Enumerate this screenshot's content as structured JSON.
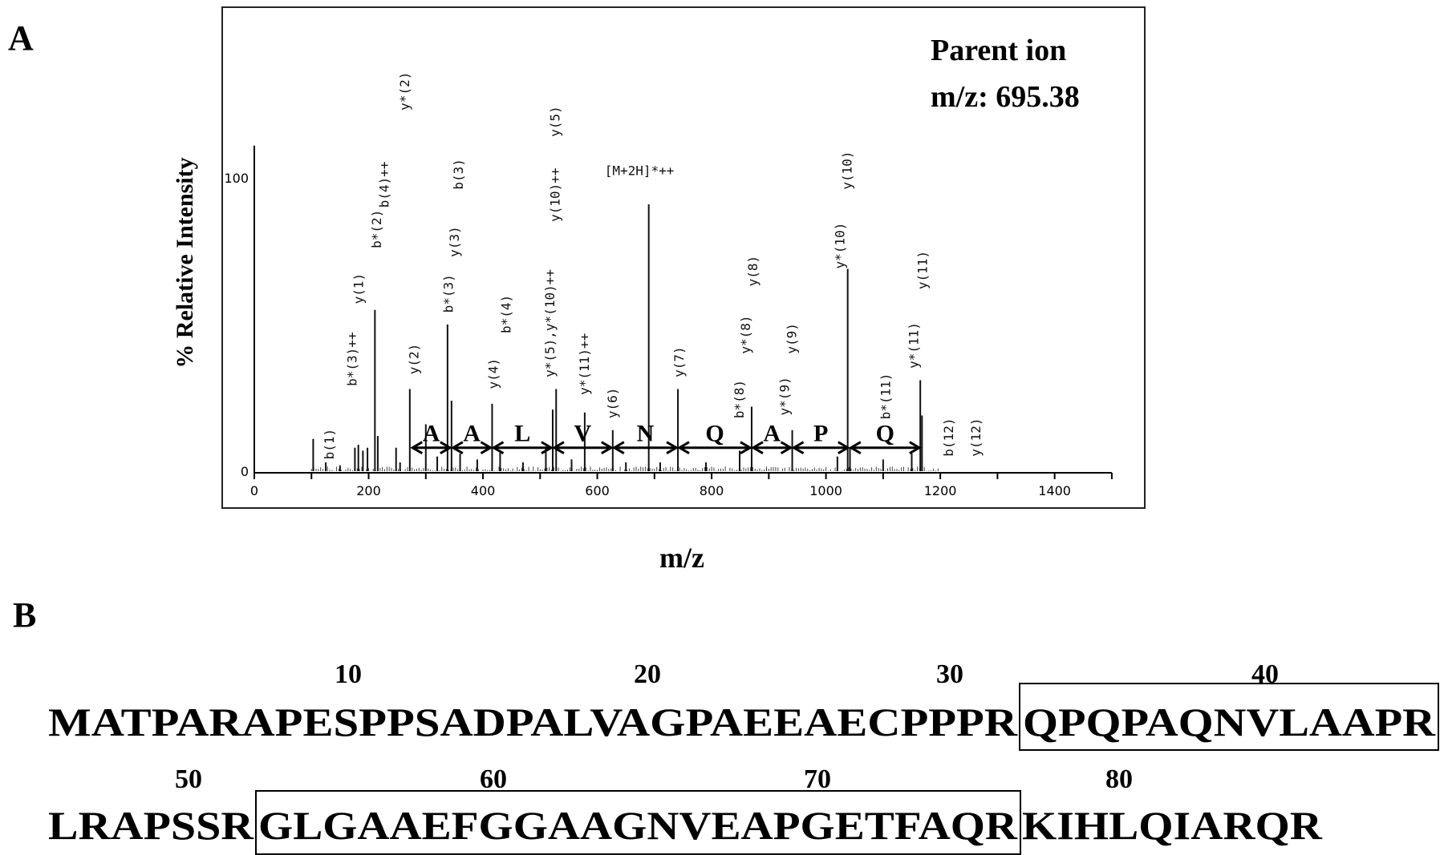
{
  "panel_a_label": "A",
  "panel_b_label": "B",
  "chart_data": {
    "type": "bar",
    "title": "",
    "annotation": [
      "Parent ion",
      "m/z: 695.38"
    ],
    "xlabel": "m/z",
    "ylabel": "% Relative Intensity",
    "xlim": [
      0,
      1500
    ],
    "ylim": [
      0,
      111
    ],
    "xticks": [
      0,
      200,
      400,
      600,
      800,
      1000,
      1200,
      1400
    ],
    "yticks": [
      0,
      100
    ],
    "peaks": [
      {
        "mz": 103,
        "i": 11
      },
      {
        "mz": 125,
        "i": 3
      },
      {
        "mz": 150,
        "i": 2
      },
      {
        "mz": 176,
        "i": 8
      },
      {
        "mz": 182,
        "i": 9
      },
      {
        "mz": 190,
        "i": 7
      },
      {
        "mz": 198,
        "i": 8
      },
      {
        "mz": 211,
        "i": 55
      },
      {
        "mz": 216,
        "i": 12
      },
      {
        "mz": 248,
        "i": 8
      },
      {
        "mz": 255,
        "i": 3
      },
      {
        "mz": 272,
        "i": 28
      },
      {
        "mz": 300,
        "i": 16
      },
      {
        "mz": 320,
        "i": 5
      },
      {
        "mz": 338,
        "i": 50
      },
      {
        "mz": 345,
        "i": 24
      },
      {
        "mz": 360,
        "i": 6
      },
      {
        "mz": 390,
        "i": 4
      },
      {
        "mz": 416,
        "i": 23
      },
      {
        "mz": 430,
        "i": 7
      },
      {
        "mz": 470,
        "i": 3
      },
      {
        "mz": 510,
        "i": 8
      },
      {
        "mz": 522,
        "i": 21
      },
      {
        "mz": 528,
        "i": 28
      },
      {
        "mz": 555,
        "i": 4
      },
      {
        "mz": 578,
        "i": 20
      },
      {
        "mz": 627,
        "i": 14
      },
      {
        "mz": 650,
        "i": 3
      },
      {
        "mz": 690,
        "i": 91
      },
      {
        "mz": 710,
        "i": 3
      },
      {
        "mz": 741,
        "i": 28
      },
      {
        "mz": 790,
        "i": 3
      },
      {
        "mz": 849,
        "i": 7
      },
      {
        "mz": 870,
        "i": 22
      },
      {
        "mz": 941,
        "i": 14
      },
      {
        "mz": 1020,
        "i": 5
      },
      {
        "mz": 1038,
        "i": 69
      },
      {
        "mz": 1042,
        "i": 8
      },
      {
        "mz": 1100,
        "i": 4
      },
      {
        "mz": 1150,
        "i": 6
      },
      {
        "mz": 1165,
        "i": 31
      },
      {
        "mz": 1168,
        "i": 19
      }
    ],
    "ion_labels": [
      {
        "text": "b(1)",
        "mz": 132,
        "at": 4
      },
      {
        "text": "b*(3)++",
        "mz": 172,
        "at": 29
      },
      {
        "text": "y(1)",
        "mz": 183,
        "at": 57
      },
      {
        "text": "b*(2)",
        "mz": 215,
        "at": 76
      },
      {
        "text": "b(4)++",
        "mz": 228,
        "at": 89
      },
      {
        "text": "y*(2)",
        "mz": 264,
        "at": 123
      },
      {
        "text": "y(2)",
        "mz": 280,
        "at": 33
      },
      {
        "text": "b*(3)",
        "mz": 340,
        "at": 54
      },
      {
        "text": "y(3)",
        "mz": 351,
        "at": 73
      },
      {
        "text": "b(3)",
        "mz": 358,
        "at": 96
      },
      {
        "text": "y(4)",
        "mz": 419,
        "at": 28
      },
      {
        "text": "b*(4)",
        "mz": 441,
        "at": 47
      },
      {
        "text": "y*(5),y*(10)++",
        "mz": 518,
        "at": 32
      },
      {
        "text": "y(10)++",
        "mz": 527,
        "at": 85
      },
      {
        "text": "y(5)",
        "mz": 527,
        "at": 114
      },
      {
        "text": "y*(11)++",
        "mz": 578,
        "at": 26
      },
      {
        "text": "y(6)",
        "mz": 627,
        "at": 18
      },
      {
        "text": "y(7)",
        "mz": 744,
        "at": 32
      },
      {
        "text": "b*(8)",
        "mz": 849,
        "at": 18
      },
      {
        "text": "y*(8)",
        "mz": 860,
        "at": 40
      },
      {
        "text": "y(8)",
        "mz": 873,
        "at": 63
      },
      {
        "text": "y*(9)",
        "mz": 928,
        "at": 19
      },
      {
        "text": "y(9)",
        "mz": 941,
        "at": 40
      },
      {
        "text": "y*(10)",
        "mz": 1025,
        "at": 69
      },
      {
        "text": "y(10)",
        "mz": 1038,
        "at": 96
      },
      {
        "text": "b*(11)",
        "mz": 1105,
        "at": 7
      },
      {
        "text": "y*(11)",
        "mz": 1154,
        "at": 35
      },
      {
        "text": "y(11)",
        "mz": 1170,
        "at": 62
      },
      {
        "text": "b(12)",
        "mz": 1215,
        "at": 5
      },
      {
        "text": "y(12)",
        "mz": 1263,
        "at": 5
      }
    ],
    "precursor_label": {
      "text": "[M+2H]*++",
      "mz": 690,
      "at": 101
    },
    "sequence_ladder": [
      {
        "res": "A",
        "from": 274,
        "to": 345
      },
      {
        "res": "A",
        "from": 345,
        "to": 416
      },
      {
        "res": "L",
        "from": 416,
        "to": 522
      },
      {
        "res": "V",
        "from": 522,
        "to": 627
      },
      {
        "res": "N",
        "from": 627,
        "to": 741
      },
      {
        "res": "Q",
        "from": 741,
        "to": 870
      },
      {
        "res": "A",
        "from": 870,
        "to": 941
      },
      {
        "res": "P",
        "from": 941,
        "to": 1041
      },
      {
        "res": "Q",
        "from": 1041,
        "to": 1166
      }
    ]
  },
  "sequence": {
    "line1": {
      "numbers": [
        "10",
        "20",
        "30",
        "40"
      ],
      "pre": "MATPARAPESPPSADPALVAGPAEEAECPPPR",
      "boxed": "QPQPAQNVLAAPR",
      "post": ""
    },
    "line2": {
      "numbers": [
        "50",
        "60",
        "70",
        "80"
      ],
      "pre": "LRAPSSR",
      "boxed": "GLGAAEFGGAAGNVEAPGETFAQR",
      "post": "KIHLQIARQR"
    }
  }
}
